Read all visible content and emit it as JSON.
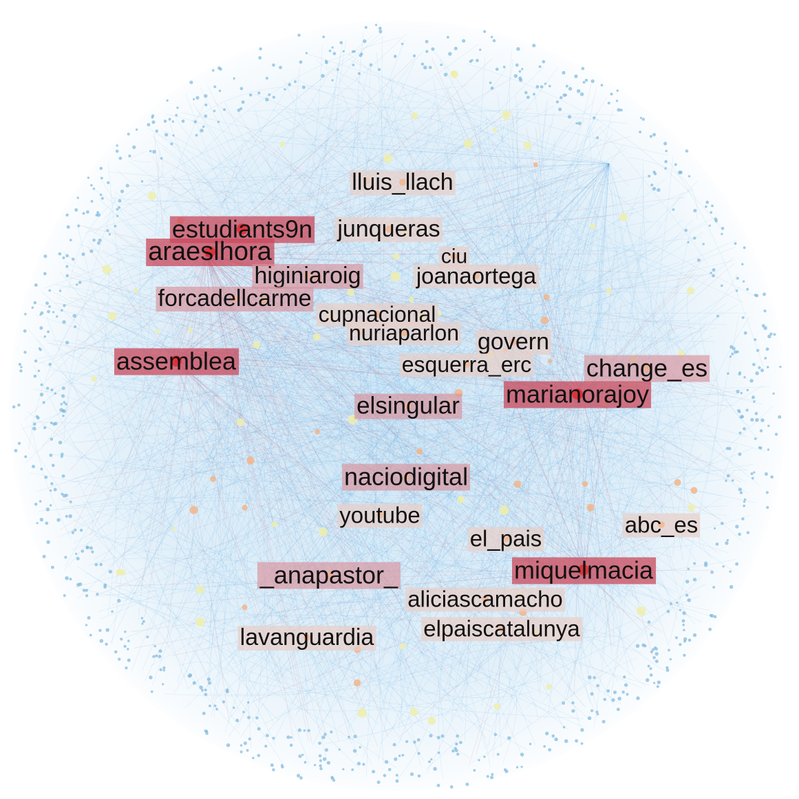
{
  "colors": {
    "edge": "#4da3dd",
    "edge_hub": "#b0607a",
    "node_small": "#7fb8dc",
    "node_mid": "#eeeeaa",
    "node_warm": "#f4b183",
    "label_strong": "#c9485b",
    "label_mid": "#d8929b",
    "label_weak": "#e8cfc8"
  },
  "nodes": [
    {
      "id": "lluis_llach",
      "label": "lluis_llach",
      "weight": "weak"
    },
    {
      "id": "estudiants9n",
      "label": "estudiants9n",
      "weight": "strong"
    },
    {
      "id": "junqueras",
      "label": "junqueras",
      "weight": "weak"
    },
    {
      "id": "araeslhora",
      "label": "araeslhora",
      "weight": "strong"
    },
    {
      "id": "ciu",
      "label": "ciu",
      "weight": "weak"
    },
    {
      "id": "higiniaroig",
      "label": "higiniaroig",
      "weight": "mid"
    },
    {
      "id": "joanaortega",
      "label": "joanaortega",
      "weight": "weak"
    },
    {
      "id": "forcadellcarme",
      "label": "forcadellcarme",
      "weight": "mid"
    },
    {
      "id": "cupnacional",
      "label": "cupnacional",
      "weight": "weak"
    },
    {
      "id": "nuriaparlon",
      "label": "nuriaparlon",
      "weight": "weak"
    },
    {
      "id": "govern",
      "label": "govern",
      "weight": "weak"
    },
    {
      "id": "assemblea",
      "label": "assemblea",
      "weight": "strong"
    },
    {
      "id": "change_es",
      "label": "change_es",
      "weight": "mid"
    },
    {
      "id": "esquerra_erc",
      "label": "esquerra_erc",
      "weight": "weak"
    },
    {
      "id": "marianorajoy",
      "label": "marianorajoy",
      "weight": "strong"
    },
    {
      "id": "elsingular",
      "label": "elsingular",
      "weight": "mid"
    },
    {
      "id": "naciodigital",
      "label": "naciodigital",
      "weight": "mid"
    },
    {
      "id": "youtube",
      "label": "youtube",
      "weight": "weak"
    },
    {
      "id": "abc_es",
      "label": "abc_es",
      "weight": "weak"
    },
    {
      "id": "el_pais",
      "label": "el_pais",
      "weight": "weak"
    },
    {
      "id": "miquelmacia",
      "label": "miquelmacia",
      "weight": "strong"
    },
    {
      "id": "_anapastor_",
      "label": "_anapastor_",
      "weight": "mid"
    },
    {
      "id": "aliciascamacho",
      "label": "aliciascamacho",
      "weight": "weak"
    },
    {
      "id": "elpaiscatalunya",
      "label": "elpaiscatalunya",
      "weight": "weak"
    },
    {
      "id": "lavanguardia",
      "label": "lavanguardia",
      "weight": "weak"
    }
  ]
}
